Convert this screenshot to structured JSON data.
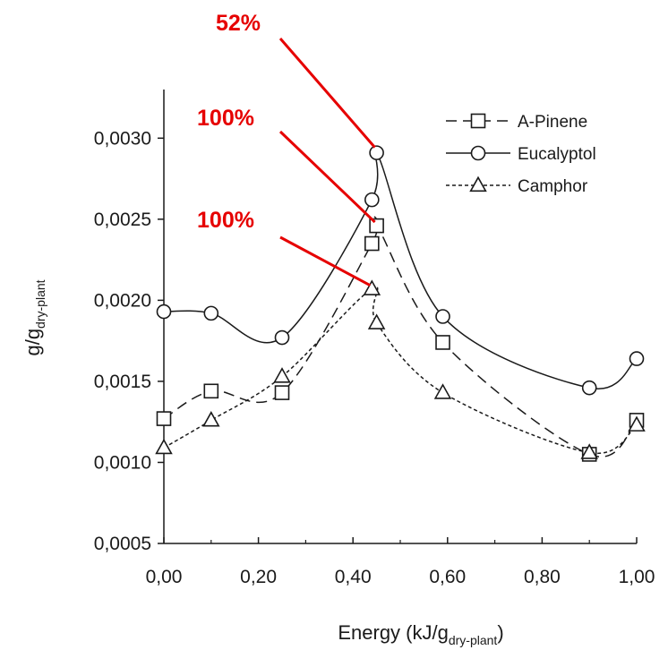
{
  "chart_data": {
    "type": "line",
    "title": "",
    "xlabel": {
      "main": "Energy (kJ/g",
      "sub": "dry-plant",
      "tail": ")"
    },
    "ylabel": {
      "main": "g/g",
      "sub": "dry-plant"
    },
    "xlim": [
      0,
      1
    ],
    "ylim": [
      0.0005,
      0.0033
    ],
    "x_ticks": [
      {
        "value": 0.0,
        "label": "0,00"
      },
      {
        "value": 0.2,
        "label": "0,20"
      },
      {
        "value": 0.4,
        "label": "0,40"
      },
      {
        "value": 0.6,
        "label": "0,60"
      },
      {
        "value": 0.8,
        "label": "0,80"
      },
      {
        "value": 1.0,
        "label": "1,00"
      }
    ],
    "y_ticks": [
      {
        "value": 0.0005,
        "label": "0,0005"
      },
      {
        "value": 0.001,
        "label": "0,0010"
      },
      {
        "value": 0.0015,
        "label": "0,0015"
      },
      {
        "value": 0.002,
        "label": "0,0020"
      },
      {
        "value": 0.0025,
        "label": "0,0025"
      },
      {
        "value": 0.003,
        "label": "0,0030"
      }
    ],
    "grid": false,
    "legend": "top-right",
    "series": [
      {
        "name": "A-Pinene",
        "marker": "square",
        "dash": "dashed",
        "x": [
          0.0,
          0.1,
          0.25,
          0.44,
          0.45,
          0.59,
          0.9,
          1.0
        ],
        "y": [
          0.00127,
          0.00144,
          0.00143,
          0.00235,
          0.00246,
          0.00174,
          0.00105,
          0.00126
        ]
      },
      {
        "name": "Eucalyptol",
        "marker": "circle",
        "dash": "solid",
        "x": [
          0.0,
          0.1,
          0.25,
          0.44,
          0.45,
          0.59,
          0.9,
          1.0
        ],
        "y": [
          0.00193,
          0.00192,
          0.00177,
          0.00262,
          0.00291,
          0.0019,
          0.00146,
          0.00164
        ]
      },
      {
        "name": "Camphor",
        "marker": "triangle",
        "dash": "dotted",
        "x": [
          0.0,
          0.1,
          0.25,
          0.44,
          0.45,
          0.59,
          0.9,
          1.0
        ],
        "y": [
          0.00109,
          0.00126,
          0.00153,
          0.00207,
          0.00186,
          0.00143,
          0.00106,
          0.00123
        ]
      }
    ],
    "annotations": [
      {
        "text": "52%",
        "target_series": "Eucalyptol",
        "target_x": 0.45,
        "target_y": 0.00291
      },
      {
        "text": "100%",
        "target_series": "A-Pinene",
        "target_x": 0.45,
        "target_y": 0.00246
      },
      {
        "text": "100%",
        "target_series": "Camphor",
        "target_x": 0.44,
        "target_y": 0.00207
      }
    ],
    "annotation_color": "#e60000",
    "line_color": "#1a1a1a"
  }
}
